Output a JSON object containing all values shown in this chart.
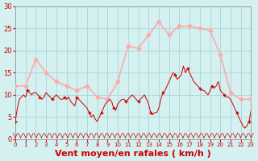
{
  "background_color": "#d4f0f0",
  "grid_color": "#b0d8d8",
  "xlabel": "Vent moyen/en rafales ( km/h )",
  "xlabel_color": "#cc0000",
  "xlabel_fontsize": 8,
  "ylabel_ticks": [
    0,
    5,
    10,
    15,
    20,
    25,
    30
  ],
  "xlim": [
    0,
    23
  ],
  "ylim": [
    0,
    30
  ],
  "rafales_x": [
    0,
    1,
    2,
    3,
    4,
    5,
    6,
    7,
    8,
    9,
    10,
    11,
    12,
    13,
    14,
    15,
    16,
    17,
    18,
    19,
    20,
    21,
    22,
    23
  ],
  "rafales_y": [
    12,
    12,
    18,
    15,
    13,
    12,
    11,
    12,
    9.5,
    9,
    13,
    21,
    20.5,
    23.5,
    26.5,
    23.5,
    25.5,
    25.5,
    25,
    24.5,
    19,
    10.5,
    9,
    9
  ],
  "moyen_x": [
    0.0,
    0.2,
    0.4,
    0.6,
    0.8,
    1.0,
    1.2,
    1.4,
    1.6,
    1.8,
    2.0,
    2.2,
    2.4,
    2.6,
    2.8,
    3.0,
    3.2,
    3.4,
    3.6,
    3.8,
    4.0,
    4.2,
    4.4,
    4.6,
    4.8,
    5.0,
    5.2,
    5.4,
    5.6,
    5.8,
    6.0,
    6.2,
    6.4,
    6.6,
    6.8,
    7.0,
    7.2,
    7.4,
    7.6,
    7.8,
    8.0,
    8.2,
    8.4,
    8.6,
    8.8,
    9.0,
    9.2,
    9.4,
    9.6,
    9.8,
    10.0,
    10.2,
    10.4,
    10.6,
    10.8,
    11.0,
    11.2,
    11.4,
    11.6,
    11.8,
    12.0,
    12.2,
    12.4,
    12.6,
    12.8,
    13.0,
    13.2,
    13.4,
    13.6,
    13.8,
    14.0,
    14.2,
    14.4,
    14.6,
    14.8,
    15.0,
    15.2,
    15.4,
    15.6,
    15.8,
    16.0,
    16.2,
    16.4,
    16.6,
    16.8,
    17.0,
    17.2,
    17.4,
    17.6,
    17.8,
    18.0,
    18.2,
    18.4,
    18.6,
    18.8,
    19.0,
    19.2,
    19.4,
    19.6,
    19.8,
    20.0,
    20.2,
    20.4,
    20.6,
    20.8,
    21.0,
    21.2,
    21.4,
    21.6,
    21.8,
    22.0,
    22.2,
    22.4,
    22.6,
    22.8,
    23.0
  ],
  "moyen_y": [
    4,
    7,
    9,
    9.5,
    10,
    9.5,
    11,
    10.5,
    10,
    10.5,
    10.5,
    10,
    9.5,
    9,
    9.5,
    10.5,
    10,
    9.5,
    9,
    9.5,
    10,
    9.5,
    9,
    9,
    9.5,
    9,
    9.5,
    8.5,
    8,
    7.5,
    9.5,
    9,
    8.5,
    8,
    7.5,
    7,
    6,
    5,
    5.5,
    4.5,
    4,
    5,
    6,
    7,
    8,
    8.5,
    9,
    8.5,
    7,
    6.5,
    8,
    8.5,
    9,
    9,
    8.5,
    9,
    9.5,
    10,
    9.5,
    9,
    8.5,
    9,
    9.5,
    10,
    9,
    8,
    6,
    5.5,
    6,
    6,
    7,
    9,
    10.5,
    11,
    12,
    13,
    14,
    15,
    14.5,
    13.5,
    14,
    14.5,
    16.5,
    15,
    16,
    15,
    14,
    13,
    12.5,
    12,
    11.5,
    11,
    11,
    10.5,
    10,
    11,
    12,
    11.5,
    12,
    13,
    11,
    10.5,
    10,
    9.5,
    9.5,
    9,
    8,
    7,
    6,
    5,
    4,
    3,
    2.5,
    3,
    4,
    6.5
  ],
  "line_color_rafales": "#ffaaaa",
  "line_color_moyen": "#cc0000",
  "tick_color": "#cc0000",
  "arrow_color": "#cc0000",
  "spine_color": "#888888"
}
